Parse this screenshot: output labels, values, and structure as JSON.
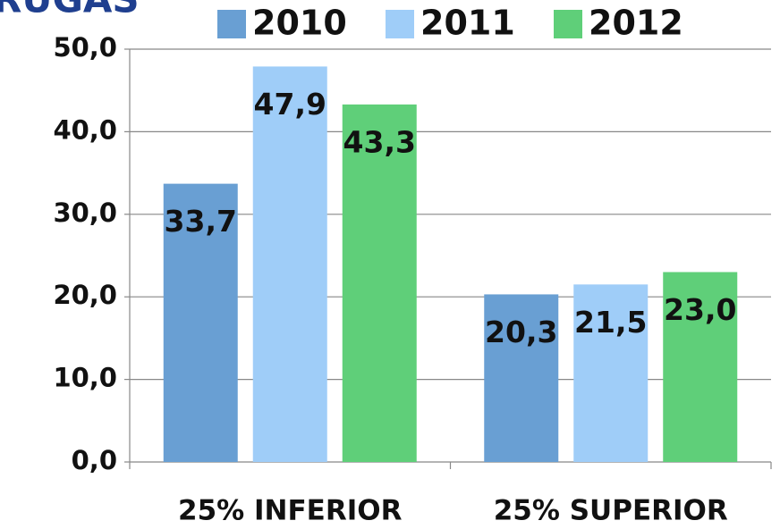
{
  "chart_data": {
    "type": "bar",
    "title": "RUGAS",
    "categories": [
      "25% INFERIOR",
      "25% SUPERIOR"
    ],
    "series": [
      {
        "name": "2010",
        "color": "#699fd3",
        "values": [
          33.7,
          20.3
        ],
        "value_labels": [
          "33,7",
          "20,3"
        ]
      },
      {
        "name": "2011",
        "color": "#9fcdf8",
        "values": [
          47.9,
          21.5
        ],
        "value_labels": [
          "47,9",
          "21,5"
        ]
      },
      {
        "name": "2012",
        "color": "#5fcf79",
        "values": [
          43.3,
          23.0
        ],
        "value_labels": [
          "43,3",
          "23,0"
        ]
      }
    ],
    "ylim": [
      0,
      50
    ],
    "yticks": [
      {
        "value": 0,
        "label": "0,0"
      },
      {
        "value": 10,
        "label": "10,0"
      },
      {
        "value": 20,
        "label": "20,0"
      },
      {
        "value": 30,
        "label": "30,0"
      },
      {
        "value": 40,
        "label": "40,0"
      },
      {
        "value": 50,
        "label": "50,0"
      }
    ],
    "grid": true,
    "legend": "top"
  }
}
